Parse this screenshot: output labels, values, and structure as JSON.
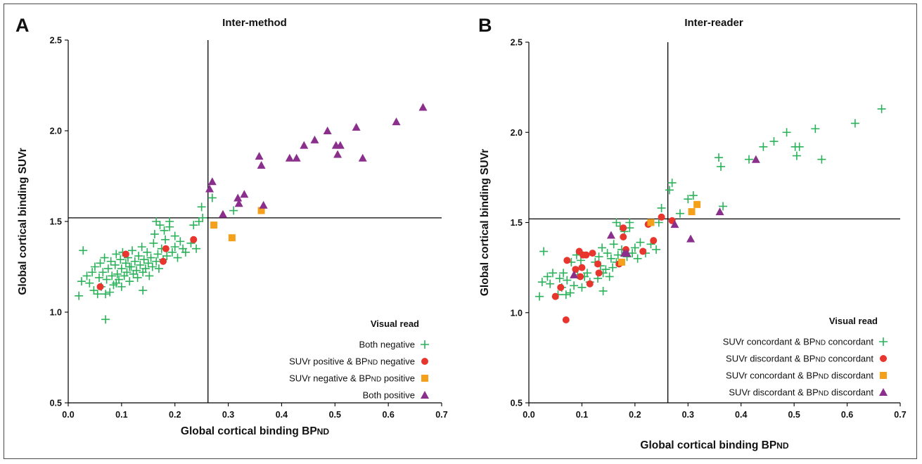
{
  "chart_data": [
    {
      "type": "scatter",
      "panel_label": "A",
      "title": "Inter-method",
      "xlabel": "Global cortical binding BP",
      "xlabel_sub": "ND",
      "ylabel": "Global cortical binding SUVr",
      "xlim": [
        0.0,
        0.7
      ],
      "ylim": [
        0.5,
        2.5
      ],
      "xticks": [
        "0.0",
        "0.1",
        "0.2",
        "0.3",
        "0.4",
        "0.5",
        "0.6",
        "0.7"
      ],
      "yticks": [
        "0.5",
        "1.0",
        "1.5",
        "2.0",
        "2.5"
      ],
      "thresholds": {
        "x": 0.262,
        "y": 1.52
      },
      "legend": {
        "title": "Visual read",
        "placement": "bottom-right"
      },
      "series": [
        {
          "name": "Both negative",
          "marker": "plus",
          "color": "#2bb25a",
          "points": [
            [
              0.02,
              1.09
            ],
            [
              0.025,
              1.17
            ],
            [
              0.028,
              1.34
            ],
            [
              0.035,
              1.2
            ],
            [
              0.04,
              1.16
            ],
            [
              0.045,
              1.22
            ],
            [
              0.048,
              1.12
            ],
            [
              0.05,
              1.25
            ],
            [
              0.055,
              1.1
            ],
            [
              0.058,
              1.19
            ],
            [
              0.06,
              1.27
            ],
            [
              0.062,
              1.14
            ],
            [
              0.065,
              1.22
            ],
            [
              0.068,
              1.3
            ],
            [
              0.07,
              0.96
            ],
            [
              0.072,
              1.18
            ],
            [
              0.075,
              1.24
            ],
            [
              0.078,
              1.11
            ],
            [
              0.08,
              1.28
            ],
            [
              0.082,
              1.2
            ],
            [
              0.085,
              1.15
            ],
            [
              0.088,
              1.26
            ],
            [
              0.09,
              1.32
            ],
            [
              0.092,
              1.21
            ],
            [
              0.095,
              1.18
            ],
            [
              0.098,
              1.29
            ],
            [
              0.1,
              1.24
            ],
            [
              0.1,
              1.14
            ],
            [
              0.102,
              1.33
            ],
            [
              0.105,
              1.2
            ],
            [
              0.108,
              1.27
            ],
            [
              0.11,
              1.22
            ],
            [
              0.112,
              1.3
            ],
            [
              0.115,
              1.17
            ],
            [
              0.118,
              1.25
            ],
            [
              0.12,
              1.34
            ],
            [
              0.122,
              1.21
            ],
            [
              0.125,
              1.28
            ],
            [
              0.128,
              1.23
            ],
            [
              0.13,
              1.19
            ],
            [
              0.132,
              1.31
            ],
            [
              0.135,
              1.26
            ],
            [
              0.138,
              1.36
            ],
            [
              0.14,
              1.22
            ],
            [
              0.142,
              1.29
            ],
            [
              0.145,
              1.24
            ],
            [
              0.148,
              1.33
            ],
            [
              0.15,
              1.27
            ],
            [
              0.152,
              1.2
            ],
            [
              0.155,
              1.3
            ],
            [
              0.158,
              1.25
            ],
            [
              0.16,
              1.38
            ],
            [
              0.162,
              1.43
            ],
            [
              0.165,
              1.28
            ],
            [
              0.168,
              1.32
            ],
            [
              0.17,
              1.24
            ],
            [
              0.172,
              1.48
            ],
            [
              0.175,
              1.35
            ],
            [
              0.178,
              1.29
            ],
            [
              0.18,
              1.45
            ],
            [
              0.182,
              1.4
            ],
            [
              0.185,
              1.31
            ],
            [
              0.19,
              1.47
            ],
            [
              0.195,
              1.33
            ],
            [
              0.2,
              1.36
            ],
            [
              0.205,
              1.3
            ],
            [
              0.21,
              1.39
            ],
            [
              0.215,
              1.35
            ],
            [
              0.22,
              1.33
            ],
            [
              0.23,
              1.38
            ],
            [
              0.235,
              1.48
            ],
            [
              0.24,
              1.35
            ],
            [
              0.245,
              1.5
            ],
            [
              0.25,
              1.58
            ],
            [
              0.252,
              1.52
            ],
            [
              0.27,
              1.63
            ],
            [
              0.31,
              1.56
            ],
            [
              0.165,
              1.5
            ],
            [
              0.19,
              1.5
            ],
            [
              0.2,
              1.42
            ],
            [
              0.14,
              1.12
            ],
            [
              0.07,
              1.1
            ],
            [
              0.09,
              1.16
            ],
            [
              0.115,
              1.25
            ]
          ]
        },
        {
          "name": "SUVr positive & BP_ND negative",
          "marker": "circle",
          "color": "#e8352e",
          "points": [
            [
              0.06,
              1.14
            ],
            [
              0.108,
              1.32
            ],
            [
              0.178,
              1.28
            ],
            [
              0.183,
              1.35
            ],
            [
              0.235,
              1.4
            ]
          ]
        },
        {
          "name": "SUVr negative & BP_ND positive",
          "marker": "square",
          "color": "#f5a01a",
          "points": [
            [
              0.273,
              1.48
            ],
            [
              0.307,
              1.41
            ],
            [
              0.362,
              1.56
            ]
          ]
        },
        {
          "name": "Both positive",
          "marker": "triangle",
          "color": "#8b2f8c",
          "points": [
            [
              0.265,
              1.68
            ],
            [
              0.27,
              1.72
            ],
            [
              0.29,
              1.54
            ],
            [
              0.318,
              1.63
            ],
            [
              0.32,
              1.6
            ],
            [
              0.33,
              1.65
            ],
            [
              0.358,
              1.86
            ],
            [
              0.362,
              1.81
            ],
            [
              0.366,
              1.59
            ],
            [
              0.415,
              1.85
            ],
            [
              0.428,
              1.85
            ],
            [
              0.442,
              1.92
            ],
            [
              0.462,
              1.95
            ],
            [
              0.486,
              2.0
            ],
            [
              0.502,
              1.92
            ],
            [
              0.505,
              1.87
            ],
            [
              0.51,
              1.92
            ],
            [
              0.54,
              2.02
            ],
            [
              0.552,
              1.85
            ],
            [
              0.615,
              2.05
            ],
            [
              0.665,
              2.13
            ]
          ]
        }
      ]
    },
    {
      "type": "scatter",
      "panel_label": "B",
      "title": "Inter-reader",
      "xlabel": "Global cortical binding BP",
      "xlabel_sub": "ND",
      "ylabel": "Global cortical binding SUVr",
      "xlim": [
        0.0,
        0.7
      ],
      "ylim": [
        0.5,
        2.5
      ],
      "xticks": [
        "0.0",
        "0.1",
        "0.2",
        "0.3",
        "0.4",
        "0.5",
        "0.6",
        "0.7"
      ],
      "yticks": [
        "0.5",
        "1.0",
        "1.5",
        "2.0",
        "2.5"
      ],
      "thresholds": {
        "x": 0.262,
        "y": 1.52
      },
      "legend": {
        "title": "Visual read",
        "placement": "bottom-right"
      },
      "series": [
        {
          "name": "SUVr concordant & BP_ND concordant",
          "marker": "plus",
          "color": "#2bb25a",
          "points": [
            [
              0.02,
              1.09
            ],
            [
              0.025,
              1.17
            ],
            [
              0.028,
              1.34
            ],
            [
              0.035,
              1.2
            ],
            [
              0.04,
              1.16
            ],
            [
              0.045,
              1.22
            ],
            [
              0.055,
              1.1
            ],
            [
              0.058,
              1.19
            ],
            [
              0.062,
              1.14
            ],
            [
              0.065,
              1.22
            ],
            [
              0.072,
              1.18
            ],
            [
              0.078,
              1.11
            ],
            [
              0.08,
              1.28
            ],
            [
              0.085,
              1.15
            ],
            [
              0.09,
              1.32
            ],
            [
              0.092,
              1.21
            ],
            [
              0.098,
              1.29
            ],
            [
              0.1,
              1.14
            ],
            [
              0.105,
              1.2
            ],
            [
              0.11,
              1.22
            ],
            [
              0.115,
              1.17
            ],
            [
              0.125,
              1.28
            ],
            [
              0.13,
              1.19
            ],
            [
              0.132,
              1.31
            ],
            [
              0.135,
              1.26
            ],
            [
              0.138,
              1.36
            ],
            [
              0.14,
              1.22
            ],
            [
              0.145,
              1.24
            ],
            [
              0.148,
              1.33
            ],
            [
              0.152,
              1.2
            ],
            [
              0.155,
              1.3
            ],
            [
              0.158,
              1.25
            ],
            [
              0.16,
              1.38
            ],
            [
              0.165,
              1.28
            ],
            [
              0.168,
              1.32
            ],
            [
              0.172,
              1.48
            ],
            [
              0.175,
              1.35
            ],
            [
              0.18,
              1.45
            ],
            [
              0.185,
              1.31
            ],
            [
              0.19,
              1.47
            ],
            [
              0.195,
              1.33
            ],
            [
              0.2,
              1.36
            ],
            [
              0.205,
              1.3
            ],
            [
              0.21,
              1.39
            ],
            [
              0.22,
              1.33
            ],
            [
              0.23,
              1.38
            ],
            [
              0.24,
              1.35
            ],
            [
              0.245,
              1.5
            ],
            [
              0.25,
              1.58
            ],
            [
              0.265,
              1.68
            ],
            [
              0.27,
              1.72
            ],
            [
              0.285,
              1.55
            ],
            [
              0.3,
              1.63
            ],
            [
              0.31,
              1.65
            ],
            [
              0.358,
              1.86
            ],
            [
              0.362,
              1.81
            ],
            [
              0.366,
              1.59
            ],
            [
              0.415,
              1.85
            ],
            [
              0.442,
              1.92
            ],
            [
              0.462,
              1.95
            ],
            [
              0.486,
              2.0
            ],
            [
              0.502,
              1.92
            ],
            [
              0.505,
              1.87
            ],
            [
              0.51,
              1.92
            ],
            [
              0.54,
              2.02
            ],
            [
              0.552,
              1.85
            ],
            [
              0.615,
              2.05
            ],
            [
              0.665,
              2.13
            ],
            [
              0.165,
              1.5
            ],
            [
              0.19,
              1.5
            ],
            [
              0.14,
              1.12
            ],
            [
              0.07,
              1.1
            ]
          ]
        },
        {
          "name": "SUVr discordant & BP_ND concordant",
          "marker": "circle",
          "color": "#e8352e",
          "points": [
            [
              0.05,
              1.09
            ],
            [
              0.06,
              1.14
            ],
            [
              0.07,
              0.96
            ],
            [
              0.072,
              1.29
            ],
            [
              0.088,
              1.24
            ],
            [
              0.095,
              1.34
            ],
            [
              0.097,
              1.2
            ],
            [
              0.1,
              1.25
            ],
            [
              0.102,
              1.32
            ],
            [
              0.108,
              1.32
            ],
            [
              0.115,
              1.16
            ],
            [
              0.12,
              1.33
            ],
            [
              0.13,
              1.27
            ],
            [
              0.132,
              1.22
            ],
            [
              0.17,
              1.27
            ],
            [
              0.178,
              1.47
            ],
            [
              0.178,
              1.42
            ],
            [
              0.183,
              1.35
            ],
            [
              0.215,
              1.34
            ],
            [
              0.225,
              1.49
            ],
            [
              0.235,
              1.4
            ],
            [
              0.25,
              1.53
            ],
            [
              0.27,
              1.51
            ]
          ]
        },
        {
          "name": "SUVr concordant & BP_ND discordant",
          "marker": "square",
          "color": "#f5a01a",
          "points": [
            [
              0.175,
              1.28
            ],
            [
              0.23,
              1.5
            ],
            [
              0.307,
              1.56
            ],
            [
              0.317,
              1.6
            ]
          ]
        },
        {
          "name": "SUVr discordant & BP_ND discordant",
          "marker": "triangle",
          "color": "#8b2f8c",
          "points": [
            [
              0.085,
              1.21
            ],
            [
              0.155,
              1.43
            ],
            [
              0.18,
              1.33
            ],
            [
              0.185,
              1.33
            ],
            [
              0.275,
              1.49
            ],
            [
              0.305,
              1.41
            ],
            [
              0.36,
              1.56
            ],
            [
              0.428,
              1.85
            ]
          ]
        }
      ]
    }
  ]
}
